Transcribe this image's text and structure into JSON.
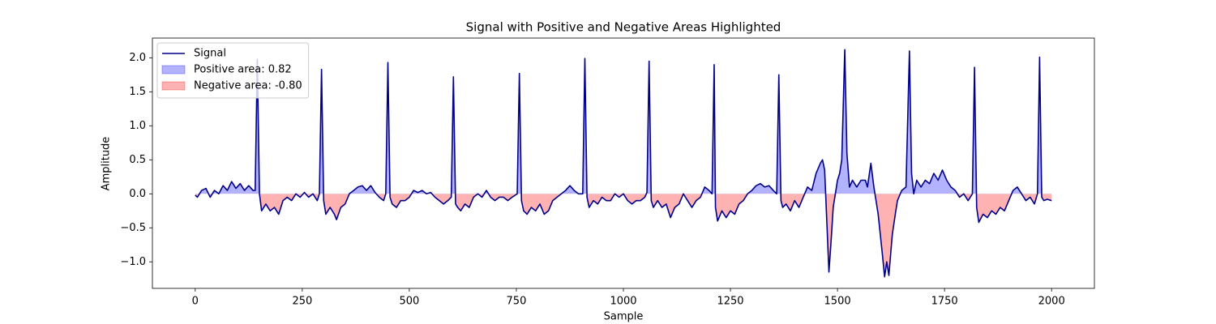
{
  "chart_data": {
    "type": "line",
    "title": "Signal with Positive and Negative Areas Highlighted",
    "x_label": "Sample",
    "y_label": "Amplitude",
    "x": [
      0,
      5,
      15,
      25,
      35,
      45,
      55,
      65,
      75,
      85,
      95,
      105,
      115,
      125,
      135,
      140,
      145,
      150,
      155,
      165,
      175,
      185,
      195,
      205,
      215,
      225,
      235,
      245,
      255,
      265,
      275,
      285,
      290,
      295,
      300,
      305,
      315,
      325,
      330,
      340,
      350,
      360,
      370,
      380,
      390,
      400,
      410,
      420,
      430,
      440,
      445,
      450,
      455,
      460,
      470,
      480,
      490,
      500,
      510,
      520,
      530,
      540,
      550,
      560,
      570,
      580,
      590,
      598,
      603,
      608,
      613,
      620,
      630,
      640,
      650,
      660,
      670,
      680,
      690,
      700,
      710,
      720,
      730,
      740,
      752,
      757,
      762,
      767,
      775,
      785,
      795,
      805,
      815,
      825,
      835,
      845,
      855,
      865,
      875,
      885,
      895,
      905,
      910,
      915,
      920,
      930,
      940,
      950,
      960,
      970,
      980,
      990,
      1000,
      1010,
      1020,
      1030,
      1040,
      1050,
      1055,
      1060,
      1065,
      1070,
      1080,
      1090,
      1100,
      1110,
      1120,
      1130,
      1140,
      1150,
      1160,
      1170,
      1180,
      1190,
      1200,
      1207,
      1212,
      1215,
      1220,
      1230,
      1240,
      1250,
      1260,
      1270,
      1280,
      1290,
      1300,
      1310,
      1320,
      1330,
      1340,
      1350,
      1358,
      1363,
      1368,
      1372,
      1380,
      1390,
      1400,
      1410,
      1420,
      1430,
      1440,
      1450,
      1460,
      1465,
      1470,
      1475,
      1480,
      1485,
      1490,
      1500,
      1505,
      1510,
      1517,
      1522,
      1528,
      1535,
      1545,
      1555,
      1565,
      1570,
      1578,
      1585,
      1595,
      1605,
      1610,
      1615,
      1620,
      1628,
      1635,
      1640,
      1650,
      1660,
      1668,
      1673,
      1678,
      1685,
      1695,
      1705,
      1715,
      1725,
      1735,
      1745,
      1755,
      1765,
      1775,
      1785,
      1795,
      1805,
      1815,
      1820,
      1825,
      1830,
      1840,
      1850,
      1860,
      1870,
      1880,
      1890,
      1900,
      1910,
      1920,
      1930,
      1940,
      1950,
      1960,
      1967,
      1972,
      1977,
      1982,
      1990,
      2000
    ],
    "series": [
      {
        "name": "Signal",
        "color": "#00008b",
        "values": [
          -0.02,
          -0.05,
          0.05,
          0.08,
          -0.05,
          0.05,
          0.0,
          0.12,
          0.05,
          0.18,
          0.08,
          0.15,
          0.05,
          0.12,
          0.05,
          0.05,
          1.98,
          0.0,
          -0.25,
          -0.15,
          -0.25,
          -0.2,
          -0.3,
          -0.1,
          -0.05,
          -0.1,
          0.0,
          -0.05,
          0.02,
          -0.05,
          0.0,
          -0.1,
          0.0,
          1.83,
          -0.1,
          -0.3,
          -0.2,
          -0.3,
          -0.38,
          -0.2,
          -0.15,
          0.0,
          0.05,
          0.1,
          0.12,
          0.05,
          0.12,
          0.02,
          -0.05,
          -0.1,
          0.0,
          1.93,
          -0.05,
          -0.15,
          -0.2,
          -0.1,
          -0.1,
          -0.05,
          0.05,
          0.02,
          0.05,
          0.0,
          0.02,
          -0.05,
          -0.1,
          -0.15,
          -0.1,
          -0.05,
          1.72,
          -0.15,
          -0.2,
          -0.25,
          -0.15,
          -0.2,
          -0.05,
          0.0,
          -0.05,
          0.05,
          -0.05,
          -0.1,
          -0.05,
          -0.05,
          -0.1,
          -0.05,
          0.0,
          1.77,
          -0.1,
          -0.25,
          -0.3,
          -0.2,
          -0.25,
          -0.15,
          -0.3,
          -0.25,
          -0.1,
          -0.05,
          0.0,
          0.05,
          0.12,
          0.05,
          0.0,
          0.0,
          1.99,
          -0.05,
          -0.2,
          -0.1,
          -0.15,
          -0.05,
          -0.1,
          -0.1,
          0.0,
          -0.05,
          0.0,
          -0.1,
          -0.15,
          -0.1,
          -0.1,
          -0.05,
          0.02,
          1.95,
          -0.1,
          -0.2,
          -0.1,
          -0.2,
          -0.15,
          -0.35,
          -0.2,
          -0.15,
          0.0,
          -0.1,
          -0.2,
          -0.1,
          -0.05,
          0.1,
          0.05,
          0.0,
          1.9,
          -0.2,
          -0.4,
          -0.25,
          -0.35,
          -0.25,
          -0.3,
          -0.15,
          -0.1,
          0.0,
          0.05,
          0.12,
          0.15,
          0.1,
          0.12,
          0.05,
          0.0,
          1.75,
          -0.1,
          -0.2,
          -0.15,
          -0.25,
          -0.1,
          -0.2,
          -0.05,
          0.1,
          0.05,
          0.3,
          0.45,
          0.5,
          0.35,
          -0.4,
          -1.15,
          -0.7,
          -0.2,
          0.2,
          0.3,
          0.5,
          2.12,
          0.6,
          0.1,
          0.2,
          0.1,
          0.2,
          0.2,
          0.1,
          0.45,
          0.1,
          -0.3,
          -0.9,
          -1.22,
          -1.0,
          -1.2,
          -0.6,
          -0.3,
          -0.1,
          0.05,
          0.1,
          2.1,
          0.3,
          0.0,
          0.2,
          0.1,
          0.2,
          0.15,
          0.3,
          0.2,
          0.35,
          0.2,
          0.1,
          0.05,
          -0.05,
          0.0,
          -0.1,
          0.0,
          1.86,
          -0.2,
          -0.42,
          -0.3,
          -0.35,
          -0.25,
          -0.3,
          -0.2,
          -0.25,
          -0.1,
          0.05,
          0.1,
          0.0,
          -0.1,
          -0.05,
          -0.15,
          0.0,
          2.01,
          -0.05,
          -0.1,
          -0.08,
          -0.1
        ]
      }
    ],
    "fills": [
      {
        "name": "Positive area: 0.82",
        "color": "#0000ff",
        "side": "positive"
      },
      {
        "name": "Negative area: -0.80",
        "color": "#ff0000",
        "side": "negative"
      }
    ],
    "xlim": [
      -100,
      2100
    ],
    "ylim": [
      -1.39,
      2.29
    ],
    "xticks": [
      0,
      250,
      500,
      750,
      1000,
      1250,
      1500,
      1750,
      2000
    ],
    "yticks": [
      {
        "value": -1.0,
        "label": "−1.0"
      },
      {
        "value": -0.5,
        "label": "−0.5"
      },
      {
        "value": 0.0,
        "label": "0.0"
      },
      0.5,
      {
        "value": 1.0,
        "label": "1.0"
      },
      1.5,
      {
        "value": 2.0,
        "label": "2.0"
      }
    ],
    "grid": false,
    "legend": "upper left"
  }
}
